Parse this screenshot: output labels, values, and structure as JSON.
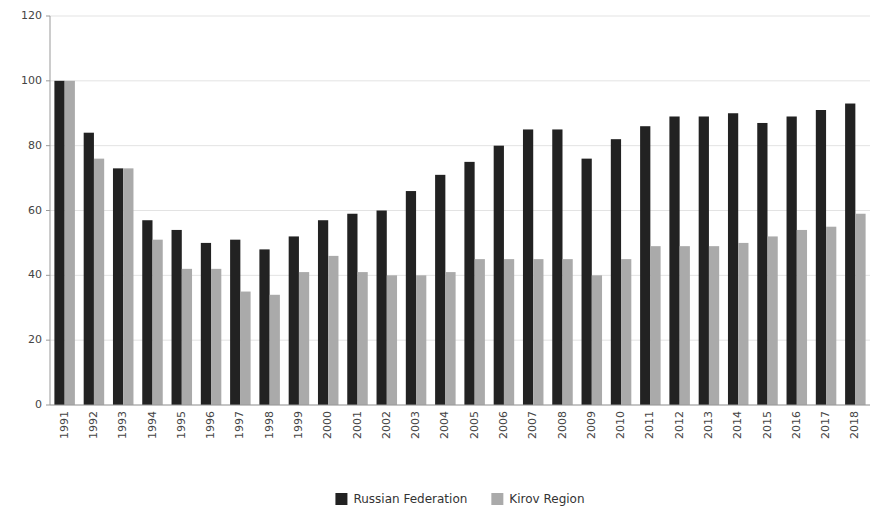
{
  "chart_data": {
    "type": "bar",
    "categories": [
      "1991",
      "1992",
      "1993",
      "1994",
      "1995",
      "1996",
      "1997",
      "1998",
      "1999",
      "2000",
      "2001",
      "2002",
      "2003",
      "2004",
      "2005",
      "2006",
      "2007",
      "2008",
      "2009",
      "2010",
      "2011",
      "2012",
      "2013",
      "2014",
      "2015",
      "2016",
      "2017",
      "2018"
    ],
    "series": [
      {
        "name": "Russian Federation",
        "color": "#222222",
        "values": [
          100,
          84,
          73,
          57,
          54,
          50,
          51,
          48,
          52,
          57,
          59,
          60,
          66,
          71,
          75,
          80,
          85,
          85,
          76,
          82,
          86,
          89,
          89,
          90,
          87,
          89,
          91,
          93
        ]
      },
      {
        "name": "Kirov Region",
        "color": "#aaaaaa",
        "values": [
          100,
          76,
          73,
          51,
          42,
          42,
          35,
          34,
          41,
          46,
          41,
          40,
          40,
          41,
          45,
          45,
          45,
          45,
          40,
          45,
          49,
          49,
          49,
          50,
          52,
          54,
          55,
          59
        ]
      }
    ],
    "ylim": [
      0,
      120
    ],
    "yticks": [
      0,
      20,
      40,
      60,
      80,
      100,
      120
    ],
    "grid": true,
    "legend": "bottom"
  }
}
